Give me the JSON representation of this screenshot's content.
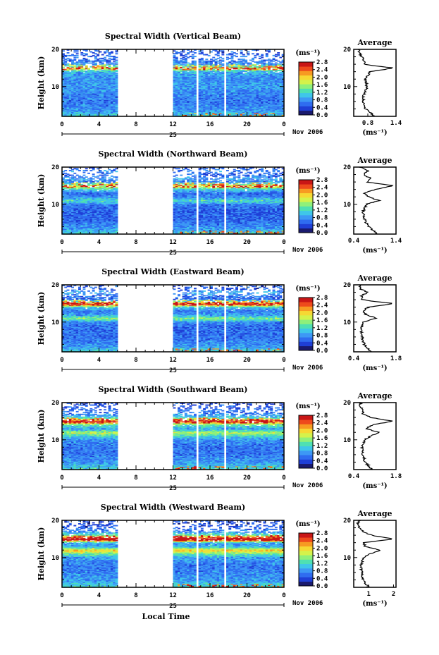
{
  "figure": {
    "xlabel": "Local Time",
    "date_label": "Nov 2006",
    "day_label": "25",
    "cb_unit_label": "(ms⁻¹)",
    "avg_title": "Average",
    "avg_xlabel": "(ms⁻¹)",
    "ylabel": "Height (km)"
  },
  "colors": {
    "colormap": [
      "#1a1a6e",
      "#1f3fd6",
      "#2f6cf0",
      "#3d98f5",
      "#3fc6e9",
      "#4fe0b2",
      "#8ff07a",
      "#d4f24b",
      "#f6d833",
      "#f79a22",
      "#ee4a1c",
      "#c91616"
    ],
    "background": "#ffffff",
    "line": "#000000"
  },
  "chart_data": [
    {
      "type": "heatmap",
      "title": "Spectral Width (Vertical Beam)",
      "xlabel": "Local Time",
      "ylabel": "Height (km)",
      "xlim": [
        0,
        24
      ],
      "ylim": [
        2,
        20
      ],
      "x_ticks": [
        "0",
        "4",
        "8",
        "12",
        "16",
        "20",
        "0"
      ],
      "y_ticks": [
        "10",
        "20"
      ],
      "colorbar": {
        "unit": "(ms⁻¹)",
        "min": 0.0,
        "max": 2.8,
        "ticks": [
          "2.8",
          "2.4",
          "2.0",
          "1.6",
          "1.2",
          "0.8",
          "0.4",
          "0.0"
        ]
      },
      "data_gaps_hours": [
        [
          6,
          12.1
        ],
        [
          14.4,
          14.8
        ],
        [
          17.5,
          17.8
        ]
      ],
      "average_profile": {
        "title": "Average",
        "xlabel": "(ms⁻¹)",
        "xlim": [
          0.5,
          1.4
        ],
        "x_ticks": [
          "0.8",
          "1.4"
        ],
        "height_km": [
          2,
          4,
          6,
          8,
          10,
          12,
          13,
          14,
          15,
          15.5,
          16,
          17,
          18,
          19,
          20
        ],
        "width_ms": [
          0.95,
          0.75,
          0.7,
          0.72,
          0.78,
          0.75,
          0.8,
          0.85,
          1.35,
          1.0,
          0.75,
          0.7,
          0.68,
          0.62,
          0.6
        ]
      }
    },
    {
      "type": "heatmap",
      "title": "Spectral Width (Northward Beam)",
      "xlabel": "Local Time",
      "ylabel": "Height (km)",
      "xlim": [
        0,
        24
      ],
      "ylim": [
        2,
        20
      ],
      "x_ticks": [
        "0",
        "4",
        "8",
        "12",
        "16",
        "20",
        "0"
      ],
      "y_ticks": [
        "10",
        "20"
      ],
      "colorbar": {
        "unit": "(ms⁻¹)",
        "min": 0.0,
        "max": 2.8,
        "ticks": [
          "2.8",
          "2.4",
          "2.0",
          "1.6",
          "1.2",
          "0.8",
          "0.4",
          "0.0"
        ]
      },
      "data_gaps_hours": [
        [
          6,
          12.1
        ],
        [
          14.4,
          14.8
        ],
        [
          17.5,
          17.8
        ]
      ],
      "average_profile": {
        "title": "Average",
        "xlabel": "(ms⁻¹)",
        "xlim": [
          0.4,
          1.4
        ],
        "x_ticks": [
          "0.4",
          "1.4"
        ],
        "height_km": [
          2,
          4,
          6,
          8,
          10,
          11,
          12,
          13,
          14,
          15,
          16,
          17,
          18,
          19,
          20
        ],
        "width_ms": [
          0.95,
          0.75,
          0.65,
          0.62,
          0.7,
          1.0,
          0.75,
          0.65,
          0.9,
          1.35,
          0.7,
          0.8,
          0.62,
          0.75,
          0.55
        ]
      }
    },
    {
      "type": "heatmap",
      "title": "Spectral Width (Eastward Beam)",
      "xlabel": "Local Time",
      "ylabel": "Height (km)",
      "xlim": [
        0,
        24
      ],
      "ylim": [
        2,
        20
      ],
      "x_ticks": [
        "0",
        "4",
        "8",
        "12",
        "16",
        "20",
        "0"
      ],
      "y_ticks": [
        "10",
        "20"
      ],
      "colorbar": {
        "unit": "(ms⁻¹)",
        "min": 0.0,
        "max": 2.8,
        "ticks": [
          "2.8",
          "2.4",
          "2.0",
          "1.6",
          "1.2",
          "0.8",
          "0.4",
          "0.0"
        ]
      },
      "data_gaps_hours": [
        [
          6,
          12.1
        ],
        [
          14.4,
          14.8
        ],
        [
          17.5,
          17.8
        ]
      ],
      "average_profile": {
        "title": "Average",
        "xlabel": "(ms⁻¹)",
        "xlim": [
          0.4,
          1.8
        ],
        "x_ticks": [
          "0.4",
          "1.8"
        ],
        "height_km": [
          2,
          4,
          6,
          8,
          10,
          11,
          12,
          13,
          14,
          15,
          15.5,
          16,
          17,
          18,
          19,
          20
        ],
        "width_ms": [
          0.95,
          0.75,
          0.68,
          0.65,
          0.72,
          1.15,
          0.8,
          0.7,
          0.9,
          1.75,
          1.1,
          0.7,
          0.65,
          0.85,
          0.6,
          0.6
        ]
      }
    },
    {
      "type": "heatmap",
      "title": "Spectral Width (Southward Beam)",
      "xlabel": "Local Time",
      "ylabel": "Height (km)",
      "xlim": [
        0,
        24
      ],
      "ylim": [
        2,
        20
      ],
      "x_ticks": [
        "0",
        "4",
        "8",
        "12",
        "16",
        "20",
        "0"
      ],
      "y_ticks": [
        "10",
        "20"
      ],
      "colorbar": {
        "unit": "(ms⁻¹)",
        "min": 0.0,
        "max": 2.8,
        "ticks": [
          "2.8",
          "2.4",
          "2.0",
          "1.6",
          "1.2",
          "0.8",
          "0.4",
          "0.0"
        ]
      },
      "data_gaps_hours": [
        [
          6,
          12.1
        ],
        [
          14.4,
          14.8
        ],
        [
          17.5,
          17.8
        ]
      ],
      "average_profile": {
        "title": "Average",
        "xlabel": "(ms⁻¹)",
        "xlim": [
          0.4,
          1.8
        ],
        "x_ticks": [
          "0.4",
          "1.8"
        ],
        "height_km": [
          2,
          4,
          6,
          8,
          10,
          11,
          12,
          13,
          14,
          15,
          16,
          17,
          18,
          19,
          20
        ],
        "width_ms": [
          1.0,
          0.78,
          0.7,
          0.68,
          0.75,
          0.95,
          1.25,
          0.8,
          1.0,
          1.7,
          0.95,
          0.7,
          0.7,
          0.6,
          0.62
        ]
      }
    },
    {
      "type": "heatmap",
      "title": "Spectral Width (Westward Beam)",
      "xlabel": "Local Time",
      "ylabel": "Height (km)",
      "xlim": [
        0,
        24
      ],
      "ylim": [
        2,
        20
      ],
      "x_ticks": [
        "0",
        "4",
        "8",
        "12",
        "16",
        "20",
        "0"
      ],
      "y_ticks": [
        "10",
        "20"
      ],
      "colorbar": {
        "unit": "(ms⁻¹)",
        "min": 0.0,
        "max": 2.8,
        "ticks": [
          "2.8",
          "2.4",
          "2.0",
          "1.6",
          "1.2",
          "0.8",
          "0.4",
          "0.0"
        ]
      },
      "data_gaps_hours": [
        [
          6,
          12.1
        ],
        [
          14.4,
          14.8
        ],
        [
          17.5,
          17.8
        ]
      ],
      "average_profile": {
        "title": "Average",
        "xlabel": "(ms⁻¹)",
        "xlim": [
          0.4,
          2.1
        ],
        "x_ticks": [
          "1",
          "2"
        ],
        "height_km": [
          2,
          4,
          6,
          8,
          10,
          11,
          12,
          13,
          14,
          15,
          16,
          17,
          18,
          19,
          20
        ],
        "width_ms": [
          1.0,
          0.78,
          0.72,
          0.7,
          0.8,
          1.05,
          1.45,
          0.85,
          0.8,
          2.0,
          1.1,
          0.75,
          0.65,
          0.55,
          0.6
        ]
      }
    }
  ]
}
